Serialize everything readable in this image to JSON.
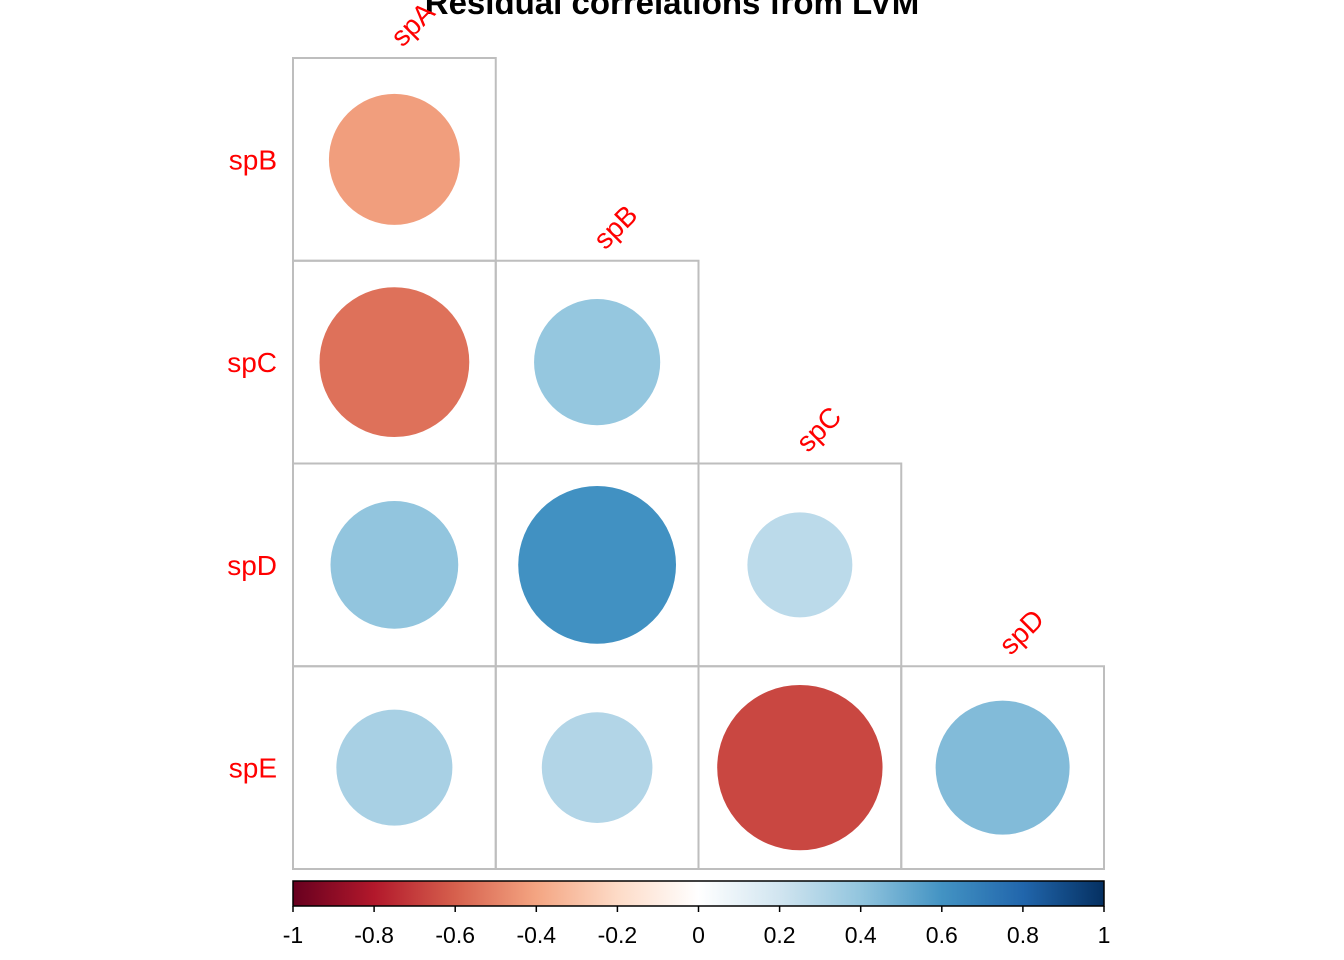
{
  "chart_data": {
    "type": "heatmap",
    "subtype": "correlation-lower-triangle-circles",
    "title": "Residual correlations from LVM",
    "row_labels": [
      "spB",
      "spC",
      "spD",
      "spE"
    ],
    "col_labels": [
      "spA",
      "spB",
      "spC",
      "spD"
    ],
    "cells": [
      {
        "row": "spB",
        "col": "spA",
        "value": -0.42
      },
      {
        "row": "spC",
        "col": "spA",
        "value": -0.55
      },
      {
        "row": "spC",
        "col": "spB",
        "value": 0.39
      },
      {
        "row": "spD",
        "col": "spA",
        "value": 0.4
      },
      {
        "row": "spD",
        "col": "spB",
        "value": 0.61
      },
      {
        "row": "spD",
        "col": "spC",
        "value": 0.27
      },
      {
        "row": "spE",
        "col": "spA",
        "value": 0.33
      },
      {
        "row": "spE",
        "col": "spB",
        "value": 0.3
      },
      {
        "row": "spE",
        "col": "spC",
        "value": -0.67
      },
      {
        "row": "spE",
        "col": "spD",
        "value": 0.44
      }
    ],
    "colorbar": {
      "range": [
        -1,
        1
      ],
      "tick_labels": [
        "-1",
        "-0.8",
        "-0.6",
        "-0.4",
        "-0.2",
        "0",
        "0.2",
        "0.4",
        "0.6",
        "0.8",
        "1"
      ],
      "palette": [
        "#67001F",
        "#B2182B",
        "#D6604D",
        "#F4A582",
        "#FDDBC7",
        "#FFFFFF",
        "#D1E5F0",
        "#92C5DE",
        "#4393C3",
        "#2166AC",
        "#053061"
      ]
    },
    "label_color": "#FF0000",
    "grid_color": "#BEBEBE"
  }
}
